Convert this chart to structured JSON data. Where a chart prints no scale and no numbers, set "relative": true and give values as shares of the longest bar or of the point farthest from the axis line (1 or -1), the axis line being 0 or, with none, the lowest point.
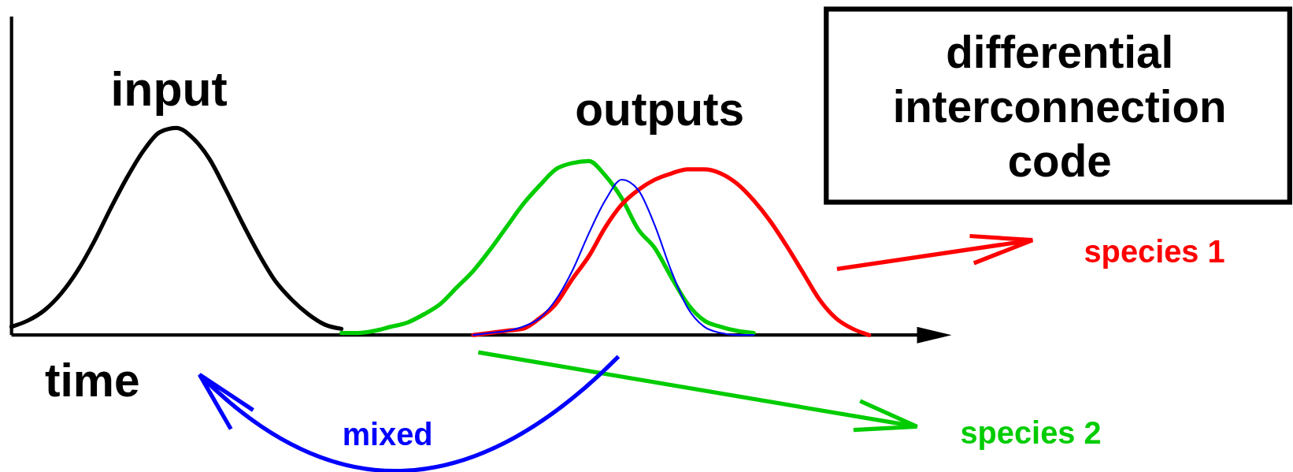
{
  "chart_data": {
    "type": "line",
    "relative": true,
    "xlabel": "time",
    "legend": "right",
    "categories": [
      null,
      null,
      null,
      null,
      null,
      null,
      null,
      null,
      null,
      null,
      null,
      null,
      null,
      null,
      null,
      null,
      null,
      null,
      null,
      null,
      null,
      null,
      null,
      null,
      null,
      null,
      null,
      null,
      null,
      null,
      null,
      null,
      null,
      null,
      null,
      null,
      null,
      null,
      null,
      null,
      null,
      null,
      null,
      null,
      null,
      null,
      null,
      null,
      null,
      null,
      null,
      null,
      null,
      null,
      null,
      null,
      null
    ],
    "series": [
      {
        "name": "input",
        "color": "#000000",
        "values": [
          0.04,
          0.07,
          0.12,
          0.2,
          0.31,
          0.45,
          0.61,
          0.76,
          0.89,
          0.98,
          1.0,
          0.95,
          0.85,
          0.7,
          0.54,
          0.39,
          0.26,
          0.17,
          0.1,
          0.05,
          0.03,
          null,
          null,
          null,
          null,
          null,
          null,
          null,
          null,
          null,
          null,
          null,
          null,
          null,
          null,
          null,
          null,
          null,
          null,
          null,
          null,
          null,
          null,
          null,
          null,
          null,
          null,
          null,
          null,
          null,
          null,
          null,
          null,
          null,
          null,
          null,
          null
        ]
      },
      {
        "name": "species 2",
        "color": "#00cc00",
        "values": [
          null,
          null,
          null,
          null,
          null,
          null,
          null,
          null,
          null,
          null,
          null,
          null,
          null,
          null,
          null,
          null,
          null,
          null,
          null,
          null,
          0.01,
          0.01,
          0.02,
          0.04,
          0.06,
          0.1,
          0.15,
          0.23,
          0.31,
          0.41,
          0.52,
          0.63,
          0.72,
          0.8,
          0.83,
          0.84,
          0.77,
          0.66,
          0.51,
          0.42,
          0.28,
          0.15,
          0.07,
          0.04,
          0.02,
          0.01,
          null,
          null,
          null,
          null,
          null,
          null,
          null,
          null,
          null,
          null,
          null
        ]
      },
      {
        "name": "species 1",
        "color": "#ff0000",
        "values": [
          null,
          null,
          null,
          null,
          null,
          null,
          null,
          null,
          null,
          null,
          null,
          null,
          null,
          null,
          null,
          null,
          null,
          null,
          null,
          null,
          null,
          null,
          null,
          null,
          null,
          null,
          null,
          null,
          0.0,
          0.01,
          0.02,
          0.03,
          0.08,
          0.15,
          0.27,
          0.38,
          0.52,
          0.63,
          0.7,
          0.75,
          0.78,
          0.8,
          0.8,
          0.78,
          0.73,
          0.65,
          0.55,
          0.43,
          0.3,
          0.17,
          0.08,
          0.03,
          0.0,
          null,
          null,
          null,
          null
        ]
      },
      {
        "name": "mixed",
        "color": "#0000ff",
        "values": [
          null,
          null,
          null,
          null,
          null,
          null,
          null,
          null,
          null,
          null,
          null,
          null,
          null,
          null,
          null,
          null,
          null,
          null,
          null,
          null,
          null,
          null,
          null,
          null,
          null,
          null,
          null,
          null,
          0.0,
          0.01,
          0.02,
          0.04,
          0.08,
          0.17,
          0.31,
          0.49,
          0.65,
          0.75,
          0.7,
          0.53,
          0.31,
          0.13,
          0.04,
          0.01,
          0.0,
          0.0,
          null,
          null,
          null,
          null,
          null,
          null,
          null,
          null,
          null,
          null,
          null
        ]
      }
    ],
    "annotations": [
      "outputs",
      "differential interconnection code"
    ]
  }
}
